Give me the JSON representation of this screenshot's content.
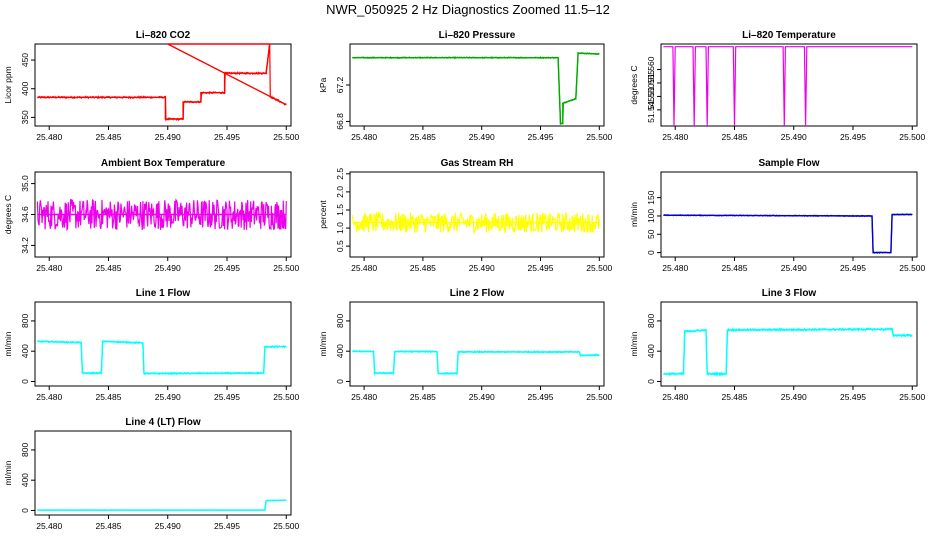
{
  "figure_title": "NWR_050925  2 Hz Diagnostics Zoomed 11.5–12",
  "colors": {
    "co2": "#ff0000",
    "pressure": "#00aa00",
    "temperature": "#ee00ee",
    "box_temp": "#ee00ee",
    "rh": "#ffff00",
    "sample_flow": "#0000cc",
    "line_flow": "#00ffff",
    "axis": "#000000"
  },
  "chart_data": [
    {
      "type": "line",
      "title": "Li–820 CO2",
      "xlabel": "",
      "ylabel": "Licor ppm",
      "xlim": [
        25.4788,
        25.5004
      ],
      "ylim": [
        335,
        478
      ],
      "x_ticks": [
        "25.480",
        "25.485",
        "25.490",
        "25.495",
        "25.500"
      ],
      "x_tick_values": [
        25.48,
        25.485,
        25.49,
        25.495,
        25.5
      ],
      "y_ticks": [
        "350",
        "400",
        "450"
      ],
      "y_tick_values": [
        350,
        400,
        450
      ],
      "series": [
        {
          "color_key": "co2",
          "noise": 1.5,
          "x": [
            25.479,
            25.4898,
            25.4898,
            25.4913,
            25.4913,
            25.4928,
            25.4928,
            25.4948,
            25.4948,
            25.4983,
            25.4986,
            25.49,
            25.5
          ],
          "y": [
            385,
            385,
            347,
            347,
            377,
            377,
            393,
            393,
            427,
            427,
            478,
            478,
            372
          ]
        }
      ]
    },
    {
      "type": "line",
      "title": "Li–820 Pressure",
      "xlabel": "",
      "ylabel": "kPa",
      "xlim": [
        25.4788,
        25.5004
      ],
      "ylim": [
        66.75,
        67.65
      ],
      "x_ticks": [
        "25.480",
        "25.485",
        "25.490",
        "25.495",
        "25.500"
      ],
      "x_tick_values": [
        25.48,
        25.485,
        25.49,
        25.495,
        25.5
      ],
      "y_ticks": [
        "66.8",
        "67.2"
      ],
      "y_tick_values": [
        66.8,
        67.2
      ],
      "series": [
        {
          "color_key": "pressure",
          "noise": 0.006,
          "x": [
            25.479,
            25.4965,
            25.4967,
            25.4969,
            25.4969,
            25.498,
            25.4982,
            25.5
          ],
          "y": [
            67.5,
            67.5,
            66.78,
            66.78,
            67.0,
            67.05,
            67.55,
            67.54
          ]
        }
      ]
    },
    {
      "type": "line",
      "title": "Li–820 Temperature",
      "xlabel": "",
      "ylabel": "degrees C",
      "xlim": [
        25.4788,
        25.5004
      ],
      "ylim": [
        51.539,
        51.5695
      ],
      "x_ticks": [
        "25.480",
        "25.485",
        "25.490",
        "25.495",
        "25.500"
      ],
      "x_tick_values": [
        25.48,
        25.485,
        25.49,
        25.495,
        25.5
      ],
      "y_ticks": [
        "51.545",
        "51.550",
        "51.555",
        "51.560"
      ],
      "y_tick_values": [
        51.545,
        51.55,
        51.555,
        51.56
      ],
      "series": [
        {
          "color_key": "temperature",
          "noise": 0,
          "x": [
            25.479,
            25.4798,
            25.4799,
            25.48,
            25.4815,
            25.4816,
            25.4817,
            25.4826,
            25.4827,
            25.4828,
            25.4849,
            25.485,
            25.4851,
            25.4891,
            25.4892,
            25.4893,
            25.4909,
            25.491,
            25.4911,
            25.5
          ],
          "y": [
            51.5685,
            51.5685,
            51.539,
            51.5685,
            51.5685,
            51.539,
            51.5685,
            51.5685,
            51.539,
            51.5685,
            51.5685,
            51.539,
            51.5685,
            51.5685,
            51.539,
            51.5685,
            51.5685,
            51.539,
            51.5685,
            51.5685
          ]
        }
      ]
    },
    {
      "type": "line",
      "title": "Ambient Box Temperature",
      "xlabel": "",
      "ylabel": "degrees C",
      "xlim": [
        25.4788,
        25.5004
      ],
      "ylim": [
        34.05,
        35.15
      ],
      "x_ticks": [
        "25.480",
        "25.485",
        "25.490",
        "25.495",
        "25.500"
      ],
      "x_tick_values": [
        25.48,
        25.485,
        25.49,
        25.495,
        25.5
      ],
      "y_ticks": [
        "34.2",
        "34.6",
        "35.0"
      ],
      "y_tick_values": [
        34.2,
        34.6,
        35.0
      ],
      "series": [
        {
          "color_key": "box_temp",
          "noise": 0.2,
          "x": [
            25.479,
            25.5
          ],
          "y": [
            34.6,
            34.6
          ]
        }
      ]
    },
    {
      "type": "line",
      "title": "Gas Stream RH",
      "xlabel": "",
      "ylabel": "percent",
      "xlim": [
        25.4788,
        25.5004
      ],
      "ylim": [
        0.2,
        2.55
      ],
      "x_ticks": [
        "25.480",
        "25.485",
        "25.490",
        "25.495",
        "25.500"
      ],
      "x_tick_values": [
        25.48,
        25.485,
        25.49,
        25.495,
        25.5
      ],
      "y_ticks": [
        "0.5",
        "1.0",
        "1.5",
        "2.0",
        "2.5"
      ],
      "y_tick_values": [
        0.5,
        1.0,
        1.5,
        2.0,
        2.5
      ],
      "series": [
        {
          "color_key": "rh",
          "noise": 0.28,
          "x": [
            25.479,
            25.5
          ],
          "y": [
            1.15,
            1.15
          ]
        }
      ]
    },
    {
      "type": "line",
      "title": "Sample Flow",
      "xlabel": "",
      "ylabel": "ml/min",
      "xlim": [
        25.4788,
        25.5004
      ],
      "ylim": [
        -12,
        220
      ],
      "x_ticks": [
        "25.480",
        "25.485",
        "25.490",
        "25.495",
        "25.500"
      ],
      "x_tick_values": [
        25.48,
        25.485,
        25.49,
        25.495,
        25.5
      ],
      "y_ticks": [
        "0",
        "50",
        "100",
        "150"
      ],
      "y_tick_values": [
        0,
        50,
        100,
        150
      ],
      "series": [
        {
          "color_key": "sample_flow",
          "noise": 1.2,
          "x": [
            25.479,
            25.4966,
            25.4967,
            25.4982,
            25.4983,
            25.5
          ],
          "y": [
            102,
            100,
            0,
            0,
            104,
            104
          ]
        }
      ]
    },
    {
      "type": "line",
      "title": "Line 1 Flow",
      "xlabel": "",
      "ylabel": "ml/min",
      "xlim": [
        25.4788,
        25.5004
      ],
      "ylim": [
        -60,
        1050
      ],
      "x_ticks": [
        "25.480",
        "25.485",
        "25.490",
        "25.495",
        "25.500"
      ],
      "x_tick_values": [
        25.48,
        25.485,
        25.49,
        25.495,
        25.5
      ],
      "y_ticks": [
        "0",
        "400",
        "800"
      ],
      "y_tick_values": [
        0,
        400,
        800
      ],
      "series": [
        {
          "color_key": "line_flow",
          "noise": 10,
          "x": [
            25.479,
            25.4827,
            25.4828,
            25.4844,
            25.4845,
            25.4879,
            25.488,
            25.4981,
            25.4982,
            25.5
          ],
          "y": [
            530,
            515,
            110,
            110,
            530,
            510,
            105,
            110,
            460,
            460
          ]
        }
      ]
    },
    {
      "type": "line",
      "title": "Line 2 Flow",
      "xlabel": "",
      "ylabel": "ml/min",
      "xlim": [
        25.4788,
        25.5004
      ],
      "ylim": [
        -60,
        1050
      ],
      "x_ticks": [
        "25.480",
        "25.485",
        "25.490",
        "25.495",
        "25.500"
      ],
      "x_tick_values": [
        25.48,
        25.485,
        25.49,
        25.495,
        25.5
      ],
      "y_ticks": [
        "0",
        "400",
        "800"
      ],
      "y_tick_values": [
        0,
        400,
        800
      ],
      "series": [
        {
          "color_key": "line_flow",
          "noise": 9,
          "x": [
            25.479,
            25.4808,
            25.4809,
            25.4825,
            25.4826,
            25.4862,
            25.4863,
            25.4879,
            25.488,
            25.4983,
            25.4984,
            25.5
          ],
          "y": [
            400,
            395,
            110,
            110,
            395,
            395,
            105,
            105,
            390,
            390,
            345,
            350
          ]
        }
      ]
    },
    {
      "type": "line",
      "title": "Line 3 Flow",
      "xlabel": "",
      "ylabel": "ml/min",
      "xlim": [
        25.4788,
        25.5004
      ],
      "ylim": [
        -60,
        1050
      ],
      "x_ticks": [
        "25.480",
        "25.485",
        "25.490",
        "25.495",
        "25.500"
      ],
      "x_tick_values": [
        25.48,
        25.485,
        25.49,
        25.495,
        25.5
      ],
      "y_ticks": [
        "0",
        "400",
        "800"
      ],
      "y_tick_values": [
        0,
        400,
        800
      ],
      "series": [
        {
          "color_key": "line_flow",
          "noise": 14,
          "x": [
            25.479,
            25.4807,
            25.4808,
            25.4826,
            25.4827,
            25.4843,
            25.4844,
            25.4983,
            25.4984,
            25.5
          ],
          "y": [
            100,
            100,
            660,
            680,
            100,
            100,
            680,
            690,
            610,
            610
          ]
        }
      ]
    },
    {
      "type": "line",
      "title": "Line 4 (LT) Flow",
      "xlabel": "",
      "ylabel": "ml/min",
      "xlim": [
        25.4788,
        25.5004
      ],
      "ylim": [
        -60,
        1050
      ],
      "x_ticks": [
        "25.480",
        "25.485",
        "25.490",
        "25.495",
        "25.500"
      ],
      "x_tick_values": [
        25.48,
        25.485,
        25.49,
        25.495,
        25.5
      ],
      "y_ticks": [
        "0",
        "400",
        "800"
      ],
      "y_tick_values": [
        0,
        400,
        800
      ],
      "series": [
        {
          "color_key": "line_flow",
          "noise": 2,
          "x": [
            25.479,
            25.4982,
            25.4983,
            25.5
          ],
          "y": [
            5,
            5,
            130,
            135
          ]
        }
      ]
    }
  ]
}
